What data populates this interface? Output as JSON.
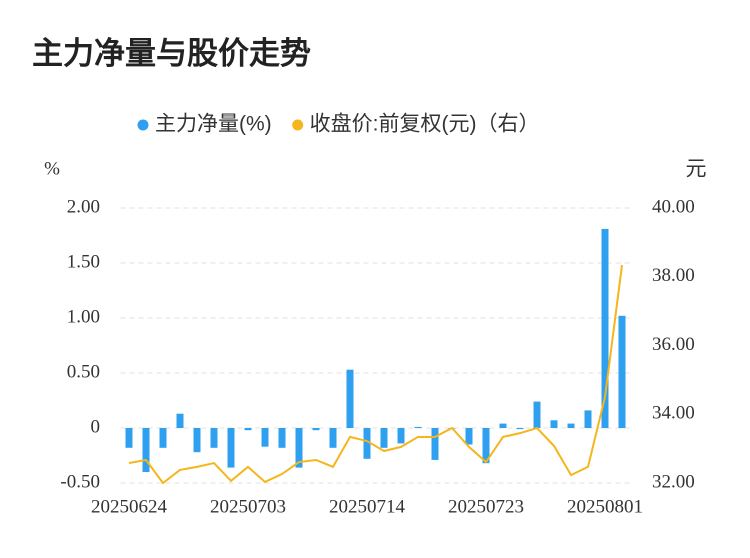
{
  "chart_data": {
    "type": "bar-line",
    "title": "主力净量与股价走势",
    "y_axis_label": "%",
    "y2_axis_label": "元",
    "categories": [
      "20250624",
      null,
      null,
      null,
      null,
      null,
      null,
      "20250703",
      null,
      null,
      null,
      null,
      null,
      null,
      "20250714",
      null,
      null,
      null,
      null,
      null,
      null,
      "20250723",
      null,
      null,
      null,
      null,
      null,
      null,
      "20250801",
      null
    ],
    "series": [
      {
        "name": "主力净量(%)",
        "color": "#2f9fef",
        "kind": "bar",
        "axis": "y",
        "values": [
          -0.18,
          -0.4,
          -0.18,
          0.13,
          -0.22,
          -0.18,
          -0.36,
          -0.02,
          -0.17,
          -0.18,
          -0.36,
          -0.02,
          -0.18,
          0.53,
          -0.28,
          -0.18,
          -0.14,
          0.01,
          -0.29,
          0,
          -0.15,
          -0.32,
          0.04,
          -0.01,
          0.24,
          0.07,
          0.04,
          0.16,
          1.81,
          1.02
        ]
      },
      {
        "name": "收盘价:前复权(元)（右）",
        "color": "#f5b51b",
        "kind": "line",
        "axis": "y2",
        "values": [
          32.58,
          32.67,
          32.0,
          32.38,
          32.47,
          32.58,
          32.06,
          32.47,
          32.03,
          32.26,
          32.61,
          32.67,
          32.47,
          33.34,
          33.22,
          32.93,
          33.05,
          33.34,
          33.34,
          33.6,
          33.05,
          32.61,
          33.34,
          33.45,
          33.6,
          33.08,
          32.23,
          32.47,
          34.5,
          38.34
        ]
      }
    ],
    "ylim": [
      -0.5,
      2.0
    ],
    "yticks": [
      {
        "value": -0.5,
        "label": "-0.50"
      },
      0,
      {
        "value": 0.5,
        "label": "0.50"
      },
      {
        "value": 1,
        "label": "1.00"
      },
      {
        "value": 1.5,
        "label": "1.50"
      },
      {
        "value": 2,
        "label": "2.00"
      }
    ],
    "y2lim": [
      32,
      40
    ],
    "y2ticks": [
      {
        "value": 32,
        "label": "32.00"
      },
      {
        "value": 34,
        "label": "34.00"
      },
      {
        "value": 36,
        "label": "36.00"
      },
      {
        "value": 38,
        "label": "38.00"
      },
      {
        "value": 40,
        "label": "40.00"
      }
    ],
    "grid": true
  }
}
